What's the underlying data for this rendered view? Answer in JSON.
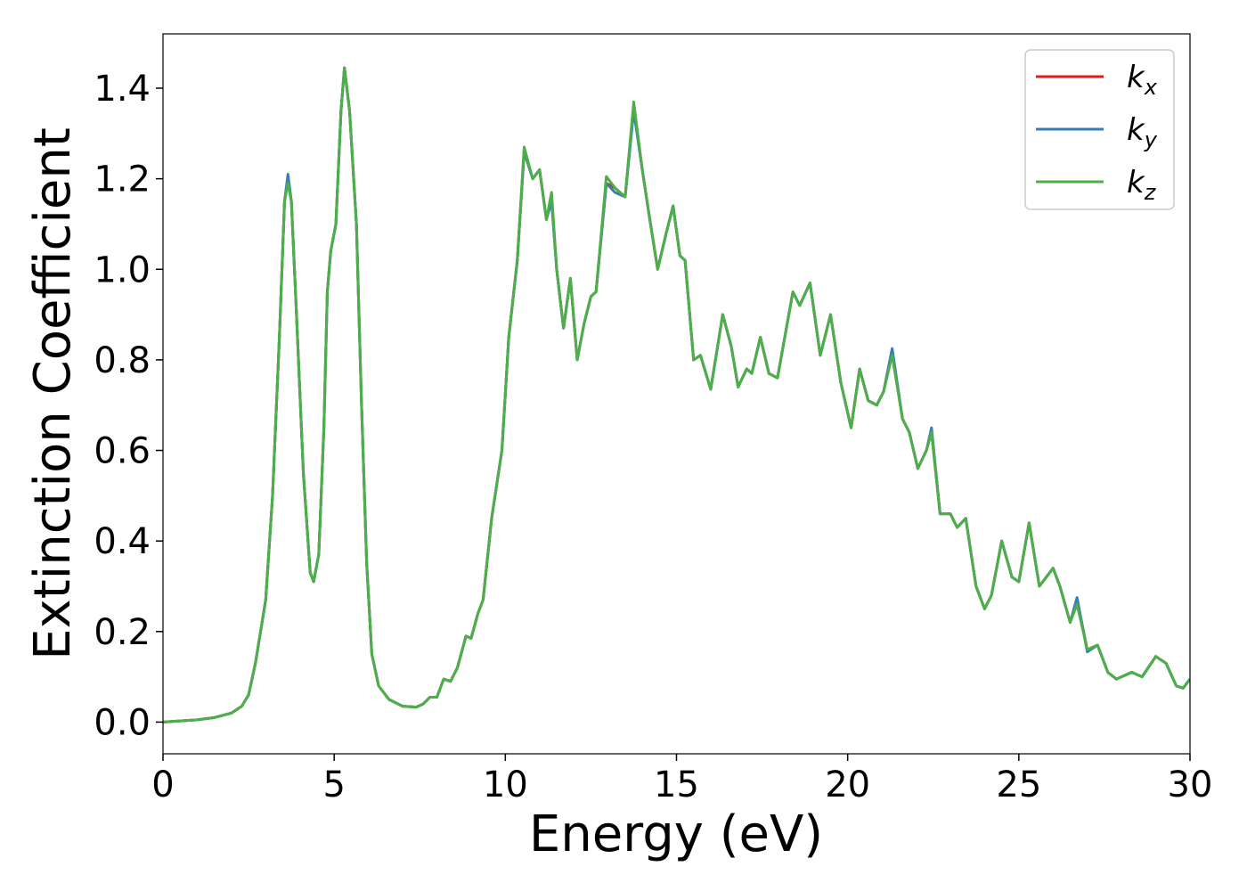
{
  "chart_data": {
    "type": "line",
    "x_label": "Energy (eV)",
    "y_label": "Extinction Coefficient",
    "x": [
      0,
      1,
      1.5,
      2,
      2.3,
      2.5,
      2.7,
      3,
      3.2,
      3.4,
      3.55,
      3.65,
      3.75,
      3.9,
      4.1,
      4.3,
      4.4,
      4.55,
      4.7,
      4.8,
      4.9,
      5.05,
      5.2,
      5.3,
      5.45,
      5.65,
      5.8,
      5.95,
      6.1,
      6.3,
      6.6,
      7,
      7.4,
      7.6,
      7.8,
      8,
      8.2,
      8.4,
      8.6,
      8.85,
      9,
      9.2,
      9.35,
      9.6,
      9.9,
      10.1,
      10.35,
      10.55,
      10.8,
      11,
      11.2,
      11.35,
      11.5,
      11.7,
      11.9,
      12.1,
      12.3,
      12.5,
      12.65,
      12.95,
      13.2,
      13.5,
      13.75,
      14,
      14.2,
      14.45,
      14.7,
      14.9,
      15.1,
      15.25,
      15.5,
      15.7,
      16,
      16.35,
      16.6,
      16.8,
      17.05,
      17.2,
      17.45,
      17.7,
      17.95,
      18.4,
      18.6,
      18.9,
      19.2,
      19.5,
      19.8,
      20.1,
      20.35,
      20.6,
      20.85,
      21.05,
      21.3,
      21.6,
      21.8,
      22.05,
      22.3,
      22.45,
      22.7,
      23,
      23.2,
      23.45,
      23.75,
      24,
      24.2,
      24.5,
      24.8,
      25,
      25.3,
      25.6,
      25.8,
      26,
      26.2,
      26.5,
      26.7,
      27,
      27.3,
      27.6,
      27.85,
      28.3,
      28.6,
      29,
      29.3,
      29.6,
      29.8,
      30
    ],
    "series": [
      {
        "name": "kx",
        "color": "#e41a1c",
        "values": [
          0,
          0.005,
          0.01,
          0.02,
          0.035,
          0.06,
          0.13,
          0.27,
          0.5,
          0.85,
          1.15,
          1.2,
          1.15,
          0.9,
          0.55,
          0.33,
          0.31,
          0.37,
          0.65,
          0.95,
          1.04,
          1.1,
          1.35,
          1.445,
          1.35,
          1.1,
          0.7,
          0.35,
          0.15,
          0.08,
          0.05,
          0.035,
          0.033,
          0.04,
          0.055,
          0.055,
          0.095,
          0.09,
          0.12,
          0.19,
          0.185,
          0.24,
          0.27,
          0.45,
          0.6,
          0.85,
          1.02,
          1.26,
          1.2,
          1.22,
          1.11,
          1.16,
          1.0,
          0.87,
          0.98,
          0.8,
          0.88,
          0.94,
          0.95,
          1.19,
          1.18,
          1.16,
          1.36,
          1.22,
          1.12,
          1.0,
          1.08,
          1.14,
          1.03,
          1.02,
          0.8,
          0.81,
          0.735,
          0.9,
          0.83,
          0.74,
          0.78,
          0.77,
          0.85,
          0.77,
          0.76,
          0.95,
          0.92,
          0.97,
          0.81,
          0.9,
          0.75,
          0.65,
          0.78,
          0.71,
          0.7,
          0.73,
          0.82,
          0.67,
          0.64,
          0.56,
          0.6,
          0.64,
          0.46,
          0.46,
          0.43,
          0.45,
          0.3,
          0.25,
          0.28,
          0.4,
          0.32,
          0.31,
          0.44,
          0.3,
          0.32,
          0.34,
          0.3,
          0.22,
          0.27,
          0.16,
          0.17,
          0.11,
          0.095,
          0.11,
          0.1,
          0.145,
          0.13,
          0.08,
          0.075,
          0.095
        ]
      },
      {
        "name": "ky",
        "color": "#377eb8",
        "values": [
          0,
          0.005,
          0.01,
          0.02,
          0.035,
          0.06,
          0.13,
          0.27,
          0.5,
          0.85,
          1.15,
          1.21,
          1.15,
          0.9,
          0.55,
          0.33,
          0.31,
          0.37,
          0.65,
          0.95,
          1.04,
          1.1,
          1.35,
          1.445,
          1.35,
          1.1,
          0.7,
          0.35,
          0.15,
          0.08,
          0.05,
          0.035,
          0.033,
          0.04,
          0.055,
          0.055,
          0.095,
          0.09,
          0.12,
          0.19,
          0.185,
          0.24,
          0.27,
          0.45,
          0.6,
          0.85,
          1.02,
          1.26,
          1.2,
          1.22,
          1.11,
          1.15,
          1.0,
          0.87,
          0.98,
          0.8,
          0.88,
          0.94,
          0.95,
          1.19,
          1.17,
          1.16,
          1.35,
          1.22,
          1.12,
          1.0,
          1.08,
          1.14,
          1.03,
          1.02,
          0.8,
          0.81,
          0.735,
          0.9,
          0.83,
          0.74,
          0.78,
          0.77,
          0.85,
          0.77,
          0.76,
          0.95,
          0.92,
          0.97,
          0.81,
          0.9,
          0.75,
          0.65,
          0.78,
          0.71,
          0.7,
          0.73,
          0.825,
          0.67,
          0.64,
          0.56,
          0.6,
          0.65,
          0.46,
          0.46,
          0.43,
          0.45,
          0.3,
          0.25,
          0.28,
          0.4,
          0.32,
          0.31,
          0.44,
          0.3,
          0.32,
          0.34,
          0.3,
          0.22,
          0.275,
          0.155,
          0.17,
          0.11,
          0.095,
          0.11,
          0.1,
          0.145,
          0.13,
          0.08,
          0.075,
          0.095
        ]
      },
      {
        "name": "kz",
        "color": "#4daf4a",
        "values": [
          0,
          0.005,
          0.01,
          0.02,
          0.035,
          0.06,
          0.13,
          0.27,
          0.5,
          0.85,
          1.15,
          1.19,
          1.15,
          0.9,
          0.55,
          0.33,
          0.31,
          0.37,
          0.65,
          0.95,
          1.04,
          1.1,
          1.35,
          1.445,
          1.35,
          1.1,
          0.7,
          0.35,
          0.15,
          0.08,
          0.05,
          0.035,
          0.033,
          0.04,
          0.055,
          0.055,
          0.095,
          0.09,
          0.12,
          0.19,
          0.185,
          0.24,
          0.27,
          0.45,
          0.6,
          0.85,
          1.02,
          1.27,
          1.2,
          1.22,
          1.11,
          1.17,
          1.0,
          0.87,
          0.98,
          0.8,
          0.88,
          0.94,
          0.95,
          1.205,
          1.18,
          1.16,
          1.37,
          1.22,
          1.12,
          1.0,
          1.08,
          1.14,
          1.03,
          1.02,
          0.8,
          0.81,
          0.735,
          0.9,
          0.83,
          0.74,
          0.78,
          0.77,
          0.85,
          0.77,
          0.76,
          0.95,
          0.92,
          0.97,
          0.81,
          0.9,
          0.75,
          0.65,
          0.78,
          0.71,
          0.7,
          0.73,
          0.81,
          0.67,
          0.64,
          0.56,
          0.6,
          0.64,
          0.46,
          0.46,
          0.43,
          0.45,
          0.3,
          0.25,
          0.28,
          0.4,
          0.32,
          0.31,
          0.44,
          0.3,
          0.32,
          0.34,
          0.3,
          0.22,
          0.26,
          0.16,
          0.17,
          0.11,
          0.095,
          0.11,
          0.1,
          0.145,
          0.13,
          0.08,
          0.075,
          0.095
        ]
      }
    ],
    "xlim": [
      0,
      30
    ],
    "xticks": [
      0,
      5,
      10,
      15,
      20,
      25,
      30
    ],
    "ylim": [
      -0.07,
      1.52
    ],
    "yticks": [
      {
        "value": 0,
        "label": "0.0"
      },
      {
        "value": 0.2,
        "label": "0.2"
      },
      {
        "value": 0.4,
        "label": "0.4"
      },
      {
        "value": 0.6,
        "label": "0.6"
      },
      {
        "value": 0.8,
        "label": "0.8"
      },
      {
        "value": 1.0,
        "label": "1.0"
      },
      {
        "value": 1.2,
        "label": "1.2"
      },
      {
        "value": 1.4,
        "label": "1.4"
      }
    ],
    "legend": "upper right",
    "grid": false
  }
}
